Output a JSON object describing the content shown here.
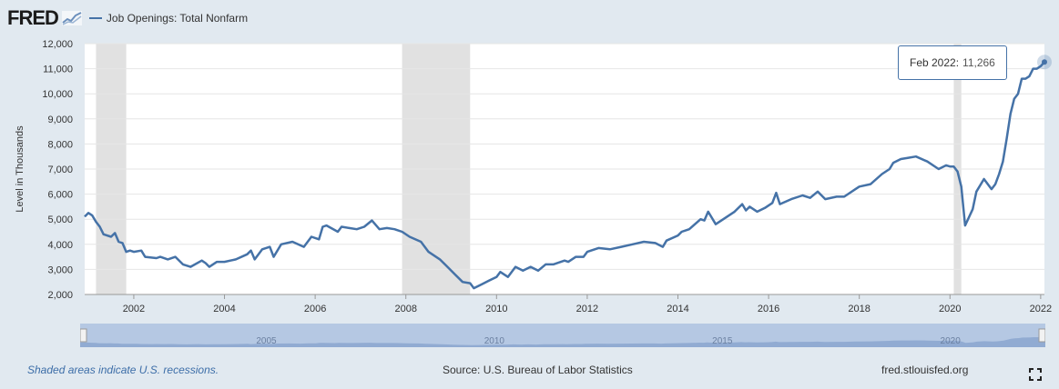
{
  "header": {
    "logo": "FRED",
    "logo_icon": "line-chart-icon",
    "series_name": "Job Openings: Total Nonfarm"
  },
  "tooltip": {
    "date": "Feb 2022:",
    "value": "11,266"
  },
  "footer": {
    "note": "Shaded areas indicate U.S. recessions.",
    "source": "Source: U.S. Bureau of Labor Statistics",
    "site": "fred.stlouisfed.org",
    "fullscreen_icon": "expand-icon"
  },
  "navigator": {
    "tick_labels": [
      "2005",
      "2010",
      "2015",
      "2020"
    ]
  },
  "colors": {
    "line": "#4572a7",
    "recession": "#e1e1e1",
    "background": "#e1e9f0",
    "plot": "#ffffff"
  },
  "chart_data": {
    "type": "line",
    "title": "",
    "xlabel": "",
    "ylabel": "Level in Thousands",
    "xlim": [
      2000.917,
      2022.083
    ],
    "ylim": [
      2000,
      12000
    ],
    "yticks": [
      2000,
      3000,
      4000,
      5000,
      6000,
      7000,
      8000,
      9000,
      10000,
      11000,
      12000
    ],
    "ytick_labels": [
      "2,000",
      "3,000",
      "4,000",
      "5,000",
      "6,000",
      "7,000",
      "8,000",
      "9,000",
      "10,000",
      "11,000",
      "12,000"
    ],
    "xticks": [
      2002,
      2004,
      2006,
      2008,
      2010,
      2012,
      2014,
      2016,
      2018,
      2020,
      2022
    ],
    "xtick_labels": [
      "2002",
      "2004",
      "2006",
      "2008",
      "2010",
      "2012",
      "2014",
      "2016",
      "2018",
      "2020",
      "2022"
    ],
    "grid": true,
    "legend": "top-left",
    "recessions": [
      [
        2001.167,
        2001.833
      ],
      [
        2007.917,
        2009.417
      ],
      [
        2020.083,
        2020.25
      ]
    ],
    "series": [
      {
        "name": "Job Openings: Total Nonfarm",
        "x": [
          2000.917,
          2001.0,
          2001.083,
          2001.167,
          2001.25,
          2001.333,
          2001.5,
          2001.583,
          2001.667,
          2001.75,
          2001.833,
          2001.917,
          2002.0,
          2002.167,
          2002.25,
          2002.5,
          2002.583,
          2002.75,
          2002.917,
          2003.083,
          2003.25,
          2003.5,
          2003.583,
          2003.667,
          2003.833,
          2004.0,
          2004.25,
          2004.5,
          2004.583,
          2004.667,
          2004.833,
          2005.0,
          2005.083,
          2005.25,
          2005.5,
          2005.75,
          2005.917,
          2006.083,
          2006.167,
          2006.25,
          2006.5,
          2006.583,
          2006.75,
          2006.917,
          2007.083,
          2007.25,
          2007.417,
          2007.583,
          2007.75,
          2007.917,
          2008.083,
          2008.333,
          2008.5,
          2008.583,
          2008.75,
          2008.917,
          2009.083,
          2009.25,
          2009.417,
          2009.5,
          2009.667,
          2009.833,
          2010.0,
          2010.083,
          2010.25,
          2010.417,
          2010.583,
          2010.75,
          2010.917,
          2011.083,
          2011.25,
          2011.5,
          2011.583,
          2011.75,
          2011.917,
          2012.0,
          2012.083,
          2012.25,
          2012.5,
          2012.75,
          2013.0,
          2013.25,
          2013.5,
          2013.667,
          2013.75,
          2014.0,
          2014.083,
          2014.25,
          2014.5,
          2014.583,
          2014.667,
          2014.833,
          2015.0,
          2015.25,
          2015.417,
          2015.5,
          2015.583,
          2015.75,
          2015.917,
          2016.083,
          2016.167,
          2016.25,
          2016.5,
          2016.75,
          2016.917,
          2017.083,
          2017.25,
          2017.5,
          2017.667,
          2017.75,
          2017.917,
          2018.0,
          2018.25,
          2018.5,
          2018.667,
          2018.75,
          2018.917,
          2019.083,
          2019.25,
          2019.5,
          2019.75,
          2019.917,
          2020.0,
          2020.083,
          2020.167,
          2020.25,
          2020.333,
          2020.5,
          2020.583,
          2020.75,
          2020.917,
          2021.0,
          2021.083,
          2021.167,
          2021.25,
          2021.333,
          2021.417,
          2021.5,
          2021.583,
          2021.667,
          2021.75,
          2021.833,
          2021.917,
          2022.0,
          2022.083
        ],
        "values": [
          5100,
          5250,
          5150,
          4900,
          4700,
          4400,
          4300,
          4450,
          4100,
          4050,
          3700,
          3750,
          3700,
          3750,
          3500,
          3450,
          3500,
          3400,
          3500,
          3200,
          3100,
          3350,
          3250,
          3100,
          3300,
          3300,
          3400,
          3600,
          3750,
          3400,
          3800,
          3900,
          3500,
          4000,
          4100,
          3900,
          4300,
          4200,
          4700,
          4750,
          4500,
          4700,
          4650,
          4600,
          4700,
          4950,
          4600,
          4650,
          4600,
          4500,
          4300,
          4100,
          3700,
          3600,
          3400,
          3100,
          2800,
          2500,
          2450,
          2250,
          2400,
          2550,
          2700,
          2900,
          2700,
          3100,
          2950,
          3100,
          2950,
          3200,
          3200,
          3350,
          3300,
          3500,
          3500,
          3700,
          3750,
          3850,
          3800,
          3900,
          4000,
          4100,
          4050,
          3900,
          4150,
          4350,
          4500,
          4600,
          5000,
          4950,
          5300,
          4800,
          5000,
          5300,
          5600,
          5350,
          5500,
          5300,
          5450,
          5650,
          6050,
          5600,
          5800,
          5950,
          5850,
          6100,
          5800,
          5900,
          5900,
          6000,
          6200,
          6300,
          6400,
          6800,
          7000,
          7250,
          7400,
          7450,
          7500,
          7300,
          7000,
          7150,
          7100,
          7100,
          6900,
          6300,
          4750,
          5400,
          6100,
          6600,
          6200,
          6400,
          6800,
          7300,
          8200,
          9200,
          9800,
          10000,
          10600,
          10600,
          10700,
          11000,
          11000,
          11100,
          11266
        ]
      }
    ]
  }
}
